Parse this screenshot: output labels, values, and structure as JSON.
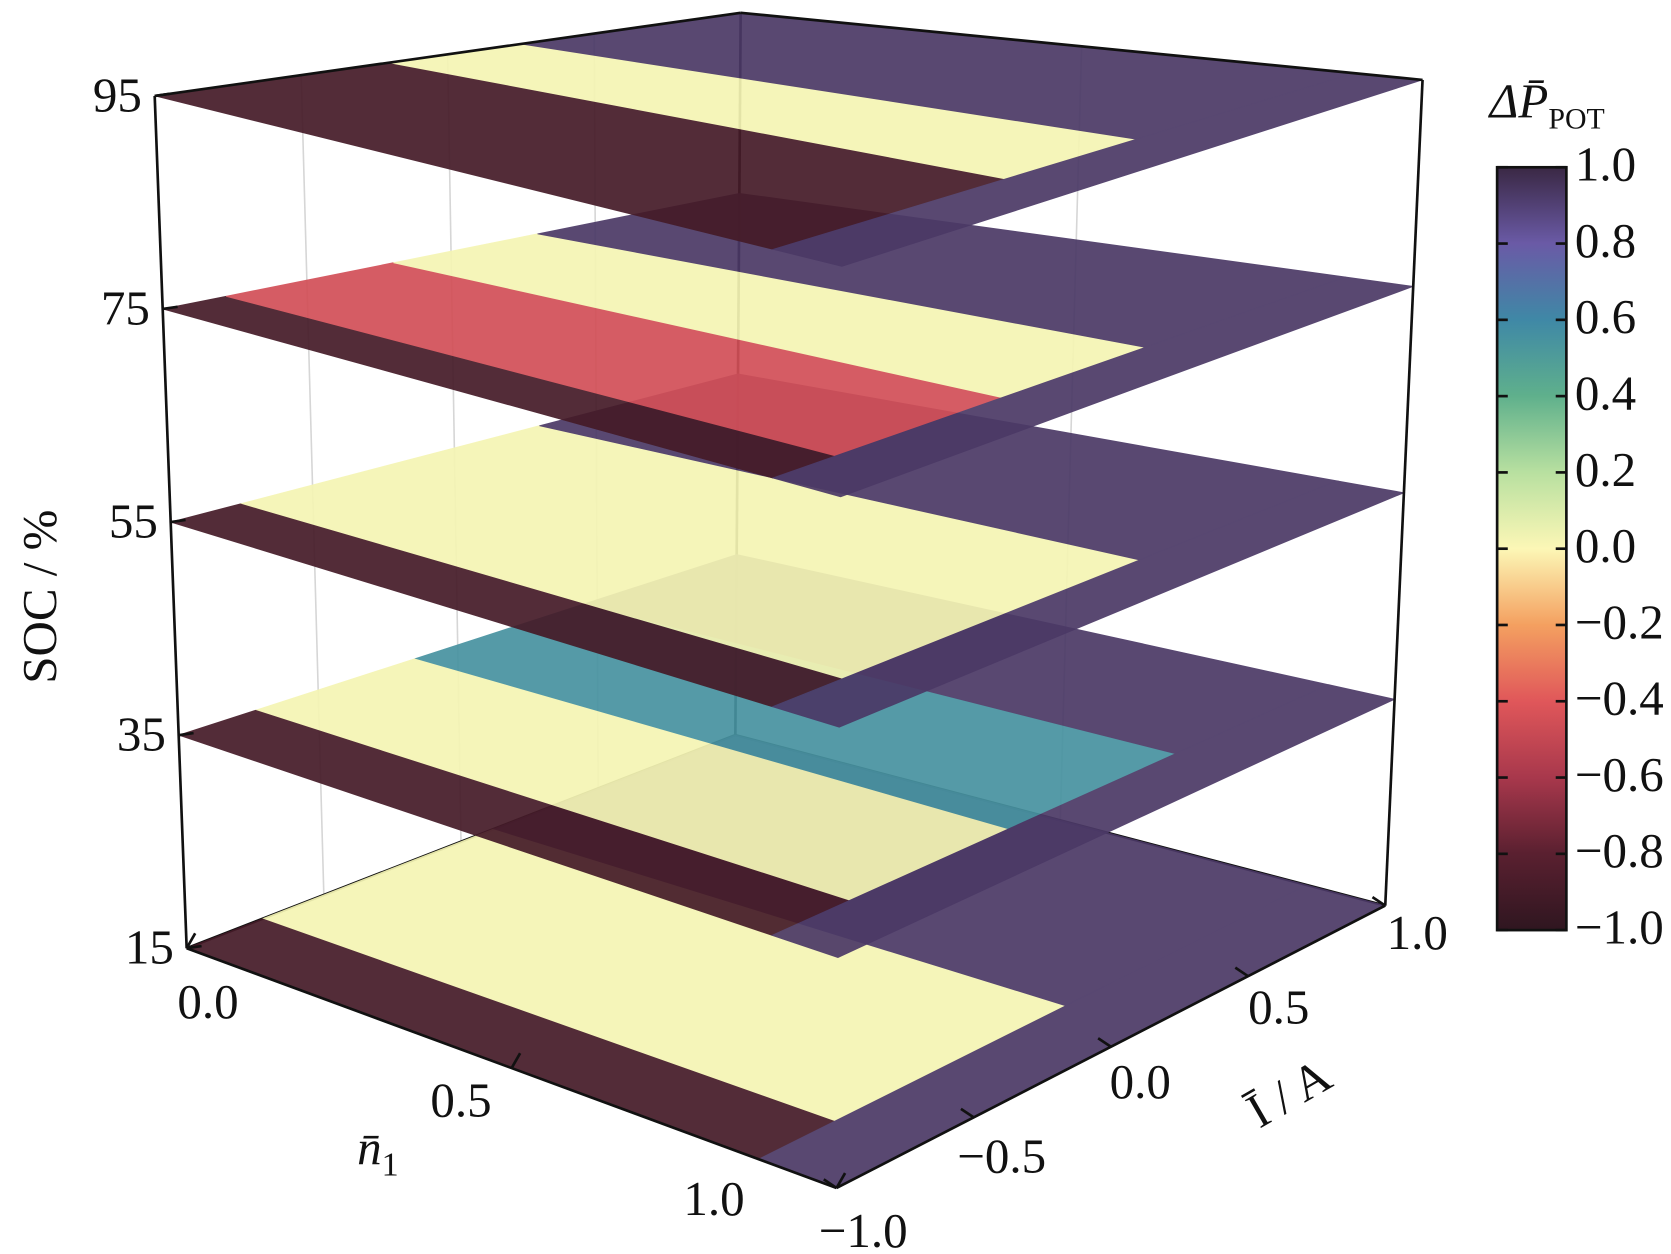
{
  "chart_data": {
    "type": "slice3d",
    "x_label": {
      "text": "n̄",
      "sub": "1"
    },
    "y_label": "Ī / A",
    "z_label": "SOC / %",
    "colorbar_title": {
      "text": "ΔP̄",
      "sub": "POT"
    },
    "xlim": [
      0,
      1
    ],
    "ylim": [
      -1,
      1
    ],
    "zlim": [
      15,
      95
    ],
    "clim": [
      -1,
      1
    ],
    "xticks": [
      {
        "value": 0,
        "label": "0.0"
      },
      0.5,
      {
        "value": 1,
        "label": "1.0"
      }
    ],
    "yticks": [
      {
        "value": -1,
        "label": "−1.0"
      },
      {
        "value": -0.5,
        "label": "−0.5"
      },
      {
        "value": 0,
        "label": "0.0"
      },
      0.5,
      {
        "value": 1,
        "label": "1.0"
      }
    ],
    "zticks": [
      15,
      35,
      55,
      75,
      95
    ],
    "cticks": [
      {
        "value": 1,
        "label": "1.0"
      },
      0.8,
      0.6,
      0.4,
      0.2,
      {
        "value": 0,
        "label": "0.0"
      },
      {
        "value": -0.2,
        "label": "−0.2"
      },
      {
        "value": -0.4,
        "label": "−0.4"
      },
      {
        "value": -0.6,
        "label": "−0.6"
      },
      {
        "value": -0.8,
        "label": "−0.8"
      },
      {
        "value": -1,
        "label": "−1.0"
      }
    ],
    "colorscale": [
      [
        -1,
        "#2f1620"
      ],
      [
        -0.8,
        "#5a2030"
      ],
      [
        -0.6,
        "#a8384c"
      ],
      [
        -0.4,
        "#e0575a"
      ],
      [
        -0.2,
        "#f4a060"
      ],
      [
        0,
        "#fcf7b6"
      ],
      [
        0.2,
        "#b8e0a0"
      ],
      [
        0.4,
        "#5fb08c"
      ],
      [
        0.6,
        "#3f88a6"
      ],
      [
        0.8,
        "#6a5aa6"
      ],
      [
        1,
        "#3a2844"
      ]
    ],
    "grid": true,
    "slices": [
      {
        "soc": 15,
        "n1_cut": 0.88,
        "cut_value": 0.93,
        "bands": [
          {
            "I": [
              -1,
              -0.72
            ],
            "value": -0.9
          },
          {
            "I": [
              -0.72,
              0.12
            ],
            "value": 0.02
          },
          {
            "I": [
              0.12,
              1
            ],
            "value": 0.93
          }
        ]
      },
      {
        "soc": 35,
        "n1_cut": 0.9,
        "cut_value": 0.93,
        "bands": [
          {
            "I": [
              -1,
              -0.72
            ],
            "value": -0.9
          },
          {
            "I": [
              -0.72,
              -0.15
            ],
            "value": 0.02
          },
          {
            "I": [
              -0.15,
              0.45
            ],
            "value": 0.55
          },
          {
            "I": [
              0.45,
              1
            ],
            "value": 0.93
          }
        ]
      },
      {
        "soc": 55,
        "n1_cut": 0.9,
        "cut_value": 0.93,
        "bands": [
          {
            "I": [
              -1,
              -0.75
            ],
            "value": -0.9
          },
          {
            "I": [
              -0.75,
              0.3
            ],
            "value": 0.02
          },
          {
            "I": [
              0.3,
              1
            ],
            "value": 0.93
          }
        ]
      },
      {
        "soc": 75,
        "n1_cut": 0.9,
        "cut_value": 0.93,
        "bands": [
          {
            "I": [
              -1,
              -0.78
            ],
            "value": -0.9
          },
          {
            "I": [
              -0.78,
              -0.2
            ],
            "value": -0.45
          },
          {
            "I": [
              -0.2,
              0.3
            ],
            "value": 0.02
          },
          {
            "I": [
              0.3,
              1
            ],
            "value": 0.93
          }
        ]
      },
      {
        "soc": 95,
        "n1_cut": 0.9,
        "cut_value": 0.93,
        "bands": [
          {
            "I": [
              -1,
              -0.2
            ],
            "value": -0.9
          },
          {
            "I": [
              -0.2,
              0.25
            ],
            "value": 0.02
          },
          {
            "I": [
              0.25,
              1
            ],
            "value": 0.93
          }
        ]
      }
    ]
  }
}
